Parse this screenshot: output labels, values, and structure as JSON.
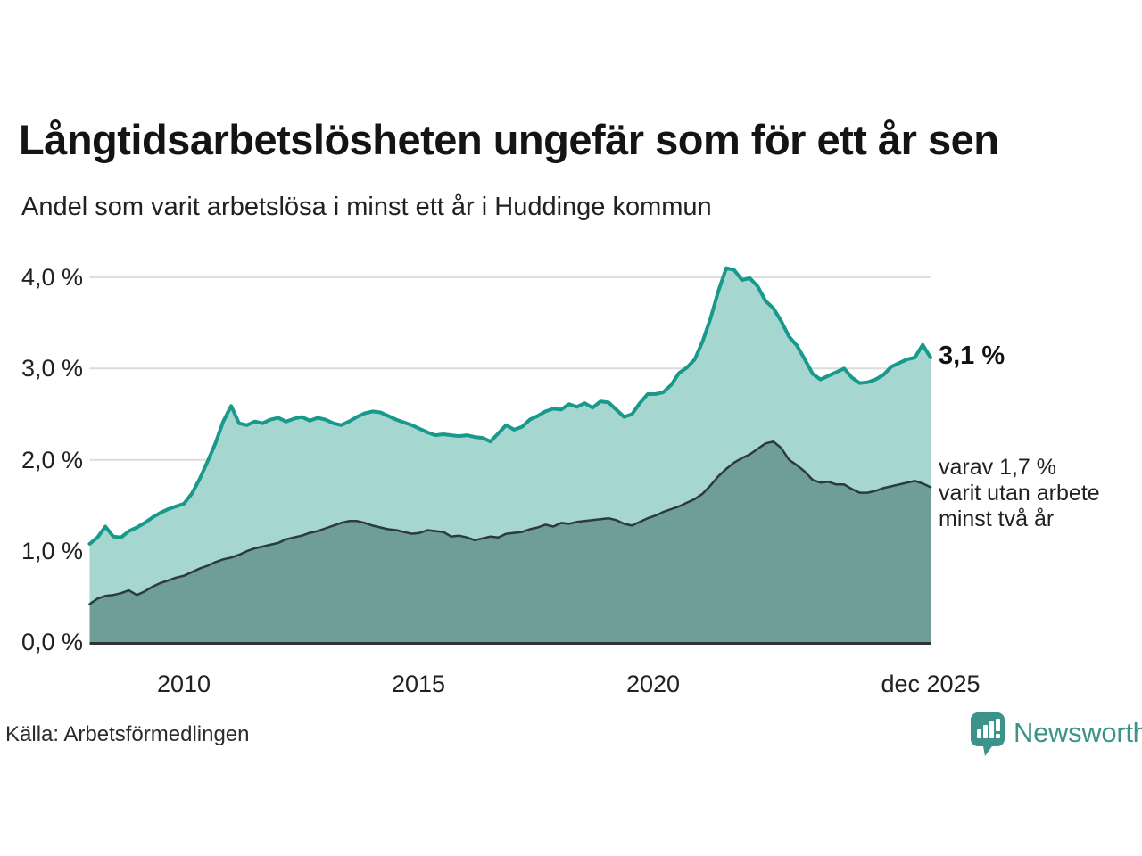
{
  "header": {
    "title": "Långtidsarbetslösheten ungefär som för ett år sen",
    "subtitle": "Andel som varit arbetslösa i minst ett år i Huddinge kommun"
  },
  "annotations": {
    "total_end_label": "3,1 %",
    "sub_end_label_lines": [
      "varav 1,7 %",
      "varit utan arbete",
      "minst två år"
    ]
  },
  "footer": {
    "source": "Källa: Arbetsförmedlingen",
    "brand": "Newsworthy"
  },
  "colors": {
    "accent": "#17998b",
    "area_light": "#a5d6cf",
    "area_dark": "#6f9e98",
    "line_dark": "#2c3a41",
    "grid": "#dcdcdd",
    "axis": "#2f3338",
    "brand": "#3c938a",
    "text": "#1a1a1a"
  },
  "chart_data": {
    "type": "area",
    "title": "Långtidsarbetslösheten ungefär som för ett år sen",
    "subtitle": "Andel som varit arbetslösa i minst ett år i Huddinge kommun",
    "source": "Källa: Arbetsförmedlingen",
    "x_start_year": 2008,
    "points_per_year": 6,
    "x_tick_labels": [
      "2010",
      "2015",
      "2020",
      "dec 2025"
    ],
    "x_tick_years": [
      2010,
      2015,
      2020,
      2025.92
    ],
    "y_tick_labels": [
      "0,0 %",
      "1,0 %",
      "2,0 %",
      "3,0 %",
      "4,0 %"
    ],
    "y_ticks": [
      0,
      1,
      2,
      3,
      4
    ],
    "ylim": [
      0,
      4.35
    ],
    "grid": true,
    "legend_position": "right-annotations",
    "series": [
      {
        "name": "Andel arbetslösa minst ett år",
        "end_value": 3.1,
        "end_label": "3,1 %",
        "values": [
          1.08,
          1.15,
          1.27,
          1.16,
          1.15,
          1.22,
          1.26,
          1.31,
          1.37,
          1.42,
          1.46,
          1.49,
          1.52,
          1.63,
          1.79,
          1.98,
          2.18,
          2.42,
          2.59,
          2.4,
          2.38,
          2.42,
          2.4,
          2.44,
          2.46,
          2.42,
          2.45,
          2.47,
          2.43,
          2.46,
          2.44,
          2.4,
          2.38,
          2.42,
          2.47,
          2.51,
          2.53,
          2.52,
          2.48,
          2.44,
          2.41,
          2.38,
          2.34,
          2.3,
          2.27,
          2.28,
          2.27,
          2.26,
          2.27,
          2.25,
          2.24,
          2.2,
          2.29,
          2.38,
          2.33,
          2.36,
          2.44,
          2.48,
          2.53,
          2.56,
          2.55,
          2.61,
          2.58,
          2.62,
          2.57,
          2.64,
          2.63,
          2.55,
          2.47,
          2.5,
          2.62,
          2.72,
          2.72,
          2.74,
          2.82,
          2.95,
          3.01,
          3.1,
          3.3,
          3.55,
          3.85,
          4.1,
          4.08,
          3.97,
          3.99,
          3.9,
          3.74,
          3.66,
          3.52,
          3.35,
          3.25,
          3.1,
          2.94,
          2.88,
          2.92,
          2.96,
          3.0,
          2.9,
          2.84,
          2.85,
          2.88,
          2.93,
          3.02,
          3.06,
          3.1,
          3.12,
          3.26,
          3.12
        ]
      },
      {
        "name": "varav varit utan arbete minst två år",
        "end_value": 1.7,
        "end_label": "varav 1,7 % varit utan arbete minst två år",
        "values": [
          0.42,
          0.48,
          0.51,
          0.52,
          0.54,
          0.57,
          0.52,
          0.56,
          0.61,
          0.65,
          0.68,
          0.71,
          0.73,
          0.77,
          0.81,
          0.84,
          0.88,
          0.91,
          0.93,
          0.96,
          1.0,
          1.03,
          1.05,
          1.07,
          1.09,
          1.13,
          1.15,
          1.17,
          1.2,
          1.22,
          1.25,
          1.28,
          1.31,
          1.33,
          1.33,
          1.31,
          1.28,
          1.26,
          1.24,
          1.23,
          1.21,
          1.19,
          1.2,
          1.23,
          1.22,
          1.21,
          1.16,
          1.17,
          1.15,
          1.12,
          1.14,
          1.16,
          1.15,
          1.19,
          1.2,
          1.21,
          1.24,
          1.26,
          1.29,
          1.27,
          1.31,
          1.3,
          1.32,
          1.33,
          1.34,
          1.35,
          1.36,
          1.34,
          1.3,
          1.28,
          1.32,
          1.36,
          1.39,
          1.43,
          1.46,
          1.49,
          1.53,
          1.57,
          1.63,
          1.72,
          1.82,
          1.9,
          1.97,
          2.02,
          2.06,
          2.12,
          2.18,
          2.2,
          2.13,
          2.0,
          1.94,
          1.87,
          1.78,
          1.75,
          1.76,
          1.73,
          1.73,
          1.68,
          1.64,
          1.64,
          1.66,
          1.69,
          1.71,
          1.73,
          1.75,
          1.77,
          1.74,
          1.7
        ]
      }
    ]
  }
}
